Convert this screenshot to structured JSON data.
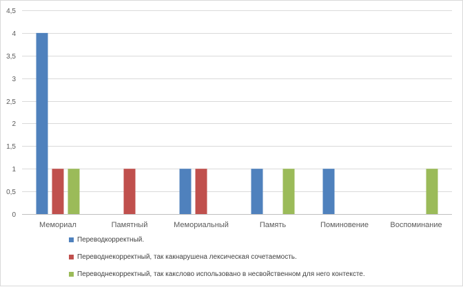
{
  "chart_data": {
    "type": "bar",
    "categories": [
      "Мемориал",
      "Памятный",
      "Мемориальный",
      "Память",
      "Поминовение",
      "Воспоминание"
    ],
    "series": [
      {
        "name": "Переводкорректный.",
        "color": "#4f81bd",
        "values": [
          4,
          0,
          1,
          1,
          1,
          0
        ]
      },
      {
        "name": "Переводнекорректный, так какнарушена лексическая сочетаемость.",
        "color": "#c0504d",
        "values": [
          1,
          1,
          1,
          0,
          0,
          0
        ]
      },
      {
        "name": "Переводнекорректный, так какслово использовано в несвойственном для него контексте.",
        "color": "#9bbb59",
        "values": [
          1,
          0,
          0,
          1,
          0,
          1
        ]
      }
    ],
    "yticks": [
      "0",
      "0,5",
      "1",
      "1,5",
      "2",
      "2,5",
      "3",
      "3,5",
      "4",
      "4,5"
    ],
    "ylim": [
      0,
      4.5
    ],
    "grid": true,
    "legend_position": "bottom"
  }
}
